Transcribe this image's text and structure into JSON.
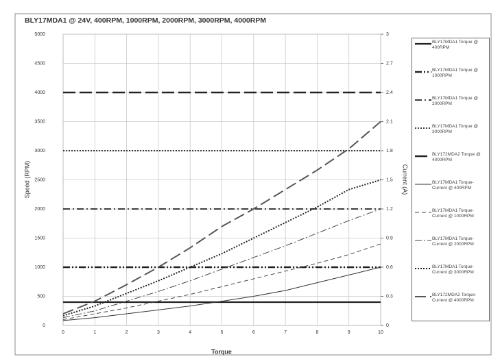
{
  "chart_data": {
    "type": "line",
    "title": "BLY17MDA1 @ 24V, 400RPM, 1000RPM, 2000RPM, 3000RPM, 4000RPM",
    "x_label": "Torque",
    "y_label": "Speed (RPM)",
    "y2_label": "Current (A)",
    "x": [
      0,
      1,
      2,
      3,
      4,
      5,
      6,
      7,
      8,
      9,
      10
    ],
    "xlim": [
      0,
      10
    ],
    "xticks": [
      0,
      1,
      2,
      3,
      4,
      5,
      6,
      7,
      8,
      9,
      10
    ],
    "ylim": [
      0,
      5000
    ],
    "yticks": [
      0,
      500,
      1000,
      1500,
      2000,
      2500,
      3000,
      3500,
      4000,
      4500,
      5000
    ],
    "y2lim": [
      0,
      3
    ],
    "y2ticks": [
      0,
      0.3,
      0.6,
      0.9,
      1.2,
      1.5,
      1.8,
      2.1,
      2.4,
      2.7,
      3
    ],
    "grid": true,
    "series": [
      {
        "name": "BLY17MDA1 Torque @ 400RPM",
        "color": "#222222",
        "style": "solid-bold",
        "values": [
          400,
          400,
          400,
          400,
          400,
          400,
          400,
          400,
          400,
          400,
          400
        ]
      },
      {
        "name": "BLY17MDA1 Torque @ 1000RPM",
        "color": "#222222",
        "style": "dashdotdot-bold",
        "values": [
          1000,
          1000,
          1000,
          1000,
          1000,
          1000,
          1000,
          1000,
          1000,
          1000,
          1000
        ]
      },
      {
        "name": "BLY17MDA1 Torque @ 2000RPM",
        "color": "#222222",
        "style": "dashdot",
        "values": [
          2000,
          2000,
          2000,
          2000,
          2000,
          2000,
          2000,
          2000,
          2000,
          2000,
          2000
        ]
      },
      {
        "name": "BLY17MDA1 Torque @ 3000RPM",
        "color": "#222222",
        "style": "dotted",
        "values": [
          3000,
          3000,
          3000,
          3000,
          3000,
          3000,
          3000,
          3000,
          3000,
          3000,
          3000
        ]
      },
      {
        "name": "BLY172MDA2 Torque @ 4000RPM",
        "color": "#222222",
        "style": "longdash-bold",
        "values": [
          4000,
          4000,
          4000,
          4000,
          4000,
          4000,
          4000,
          4000,
          4000,
          4000,
          4000
        ]
      },
      {
        "name": "BLY17MDA1 Torque-Current @ 400RPM",
        "color": "#333333",
        "style": "solid",
        "axis": "y2",
        "values": [
          0.05,
          0.08,
          0.12,
          0.16,
          0.2,
          0.25,
          0.3,
          0.36,
          0.44,
          0.52,
          0.6
        ]
      },
      {
        "name": "BLY17MDA1 Torque-Current @ 1000RPM",
        "color": "#444444",
        "style": "dash",
        "axis": "y2",
        "values": [
          0.06,
          0.12,
          0.18,
          0.25,
          0.32,
          0.4,
          0.48,
          0.56,
          0.64,
          0.73,
          0.84
        ]
      },
      {
        "name": "BLY17MDA1 Torque-Current @ 2000RPM",
        "color": "#444444",
        "style": "dashdot-thin",
        "axis": "y2",
        "values": [
          0.08,
          0.15,
          0.25,
          0.35,
          0.46,
          0.58,
          0.7,
          0.82,
          0.95,
          1.08,
          1.2
        ]
      },
      {
        "name": "BLY17MDA1 Torque-Current @ 3000RPM",
        "color": "#222222",
        "style": "dotted-bold",
        "axis": "y2",
        "values": [
          0.1,
          0.2,
          0.33,
          0.46,
          0.6,
          0.74,
          0.9,
          1.06,
          1.22,
          1.4,
          1.5
        ]
      },
      {
        "name": "BLY172MDA2 Torque-Current @ 4000RPM",
        "color": "#555555",
        "style": "longdash",
        "axis": "y2",
        "values": [
          0.12,
          0.25,
          0.42,
          0.6,
          0.8,
          1.02,
          1.2,
          1.4,
          1.6,
          1.82,
          2.1
        ]
      }
    ]
  }
}
